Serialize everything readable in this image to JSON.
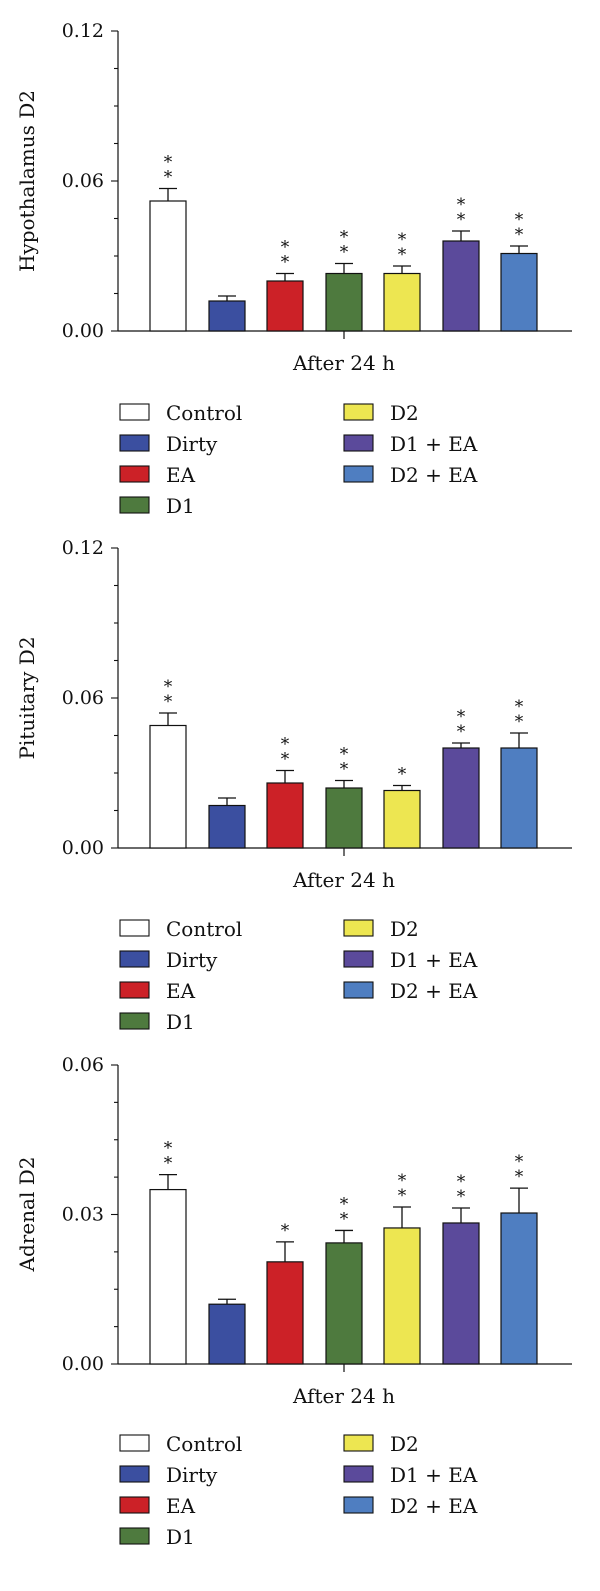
{
  "colors": {
    "Control": "#ffffff",
    "Dirty": "#3b4fa0",
    "EA": "#cc2127",
    "D1": "#4e7a3e",
    "D2": "#ede651",
    "D1 + EA": "#5b4a9b",
    "D2 + EA": "#4f7ec1"
  },
  "legend": [
    "Control",
    "Dirty",
    "EA",
    "D1",
    "D2",
    "D1 + EA",
    "D2 + EA"
  ],
  "chart_data": [
    {
      "type": "bar",
      "ylabel": "Hypothalamus D2",
      "xlabel": "After 24 h",
      "ylim": [
        0,
        0.12
      ],
      "yticks": [
        "0.00",
        "0.06",
        "0.12"
      ],
      "categories": [
        "Control",
        "Dirty",
        "EA",
        "D1",
        "D2",
        "D1 + EA",
        "D2 + EA"
      ],
      "values": [
        0.052,
        0.012,
        0.02,
        0.023,
        0.023,
        0.036,
        0.031
      ],
      "errors": [
        0.005,
        0.002,
        0.003,
        0.004,
        0.003,
        0.004,
        0.003
      ],
      "significance": [
        "**",
        "",
        "**",
        "**",
        "**",
        "**",
        "**"
      ]
    },
    {
      "type": "bar",
      "ylabel": "Pituitary D2",
      "xlabel": "After 24 h",
      "ylim": [
        0,
        0.12
      ],
      "yticks": [
        "0.00",
        "0.06",
        "0.12"
      ],
      "categories": [
        "Control",
        "Dirty",
        "EA",
        "D1",
        "D2",
        "D1 + EA",
        "D2 + EA"
      ],
      "values": [
        0.049,
        0.017,
        0.026,
        0.024,
        0.023,
        0.04,
        0.04
      ],
      "errors": [
        0.005,
        0.003,
        0.005,
        0.003,
        0.002,
        0.002,
        0.006
      ],
      "significance": [
        "**",
        "",
        "**",
        "**",
        "*",
        "**",
        "**"
      ]
    },
    {
      "type": "bar",
      "ylabel": "Adrenal D2",
      "xlabel": "After 24 h",
      "ylim": [
        0,
        0.06
      ],
      "yticks": [
        "0.00",
        "0.03",
        "0.06"
      ],
      "categories": [
        "Control",
        "Dirty",
        "EA",
        "D1",
        "D2",
        "D1 + EA",
        "D2 + EA"
      ],
      "values": [
        0.035,
        0.012,
        0.0205,
        0.0243,
        0.0273,
        0.0283,
        0.0303
      ],
      "errors": [
        0.003,
        0.001,
        0.004,
        0.0025,
        0.0042,
        0.003,
        0.005
      ],
      "significance": [
        "**",
        "",
        "*",
        "**",
        "**",
        "**",
        "**"
      ]
    }
  ]
}
